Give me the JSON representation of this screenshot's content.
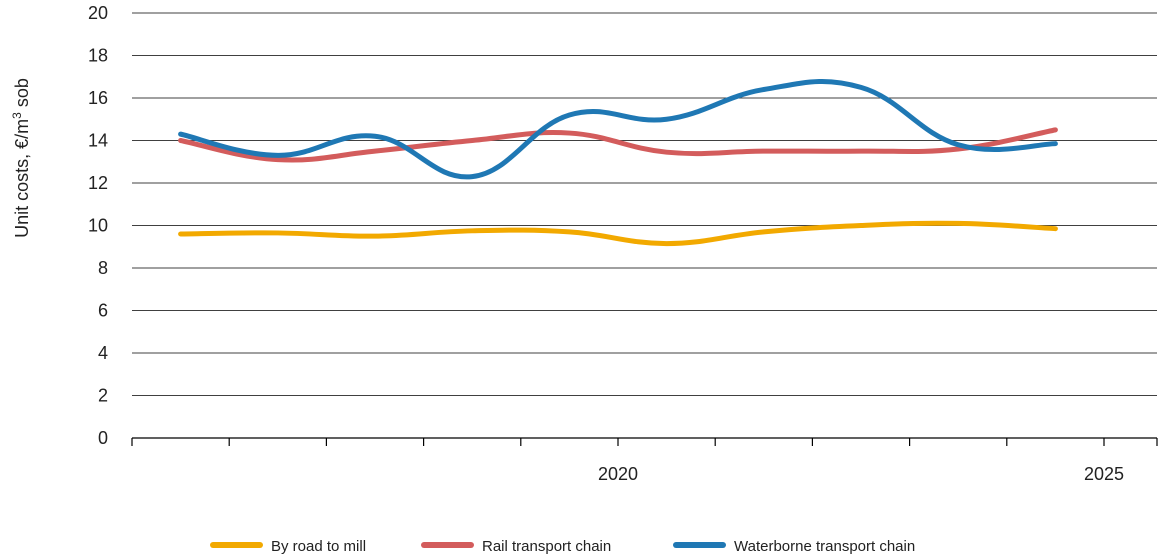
{
  "chart_data": {
    "type": "line",
    "ylabel_main": "Unit costs, €/m",
    "ylabel_sup": "3",
    "ylabel_tail": " sob",
    "ylim": [
      0,
      20
    ],
    "yticks": [
      0,
      2,
      4,
      6,
      8,
      10,
      12,
      14,
      16,
      18,
      20
    ],
    "x_range": [
      2015,
      2025
    ],
    "x_tick_positions": [
      2015,
      2016,
      2017,
      2018,
      2019,
      2020,
      2021,
      2022,
      2023,
      2024,
      2025
    ],
    "x_tick_labels": [
      {
        "year": 2020,
        "label": "2020"
      },
      {
        "year": 2025,
        "label": "2025"
      }
    ],
    "x": [
      2015.5,
      2016.5,
      2017.5,
      2018.5,
      2019.5,
      2020.5,
      2021.5,
      2022.5,
      2023.5,
      2024.5
    ],
    "grid": true,
    "legend_position": "bottom",
    "series": [
      {
        "name": "By road to mill",
        "color": "#f2a900",
        "values": [
          9.6,
          9.65,
          9.5,
          9.75,
          9.7,
          9.15,
          9.7,
          10.0,
          10.1,
          9.85
        ]
      },
      {
        "name": "Rail transport chain",
        "color": "#d35c5c",
        "values": [
          14.0,
          13.1,
          13.5,
          14.0,
          14.35,
          13.45,
          13.5,
          13.5,
          13.6,
          14.5
        ]
      },
      {
        "name": "Waterborne transport chain",
        "color": "#1f78b4",
        "values": [
          14.3,
          13.3,
          14.2,
          12.3,
          15.2,
          15.0,
          16.4,
          16.5,
          13.8,
          13.85
        ]
      }
    ]
  }
}
